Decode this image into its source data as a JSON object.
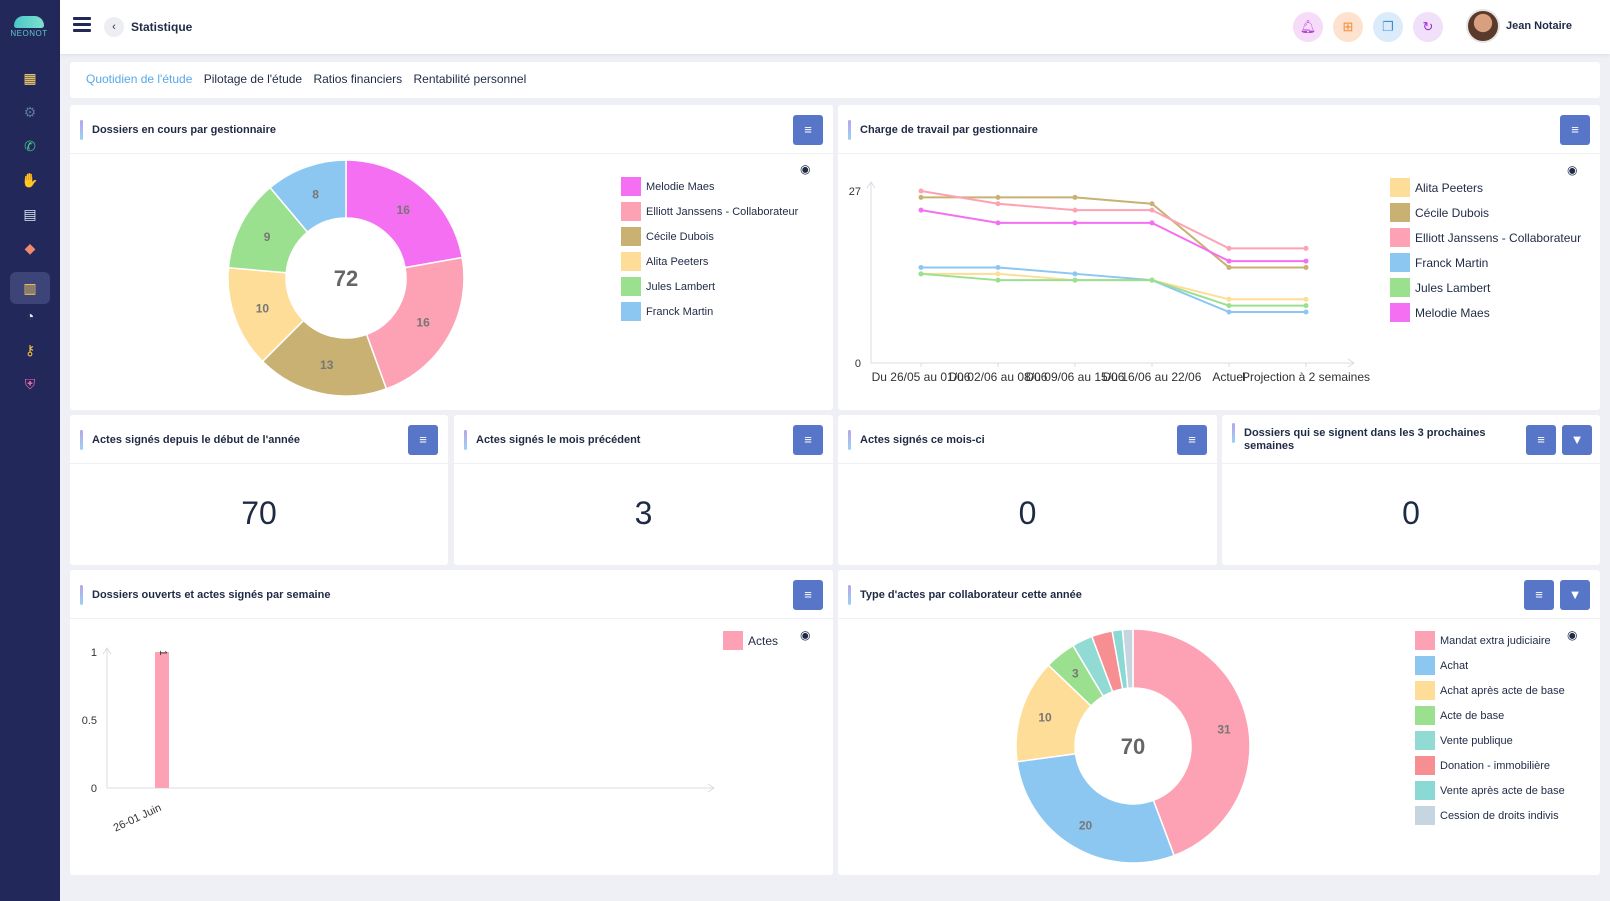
{
  "app": {
    "logo": "NEONOT",
    "page_title": "Statistique",
    "user_name": "Jean Notaire"
  },
  "topbar_icons": [
    {
      "name": "bell-icon",
      "color": "#b33fd6",
      "bg": "#f6dcf8"
    },
    {
      "name": "plus-square-icon",
      "color": "#f08a36",
      "bg": "#fde3cf"
    },
    {
      "name": "windows-icon",
      "color": "#3a8fdb",
      "bg": "#dcebf9"
    },
    {
      "name": "refresh-icon",
      "color": "#9b2fd6",
      "bg": "#f0e0f9"
    }
  ],
  "sidebar_icons": [
    "calendar-icon",
    "gear-icon",
    "phone-icon",
    "handshake-icon",
    "document-icon",
    "box-icon",
    "chart-icon",
    "clock-icon",
    "key-icon",
    "shield-icon"
  ],
  "tabs": [
    "Quotidien de l'étude",
    "Pilotage de l'étude",
    "Ratios financiers",
    "Rentabilité personnel"
  ],
  "cards": {
    "dossiers_en_cours": {
      "title": "Dossiers en cours par gestionnaire"
    },
    "charge_travail": {
      "title": "Charge de travail par gestionnaire"
    },
    "actes_annee": {
      "title": "Actes signés depuis le début de l'année",
      "value": "70"
    },
    "actes_mois_prec": {
      "title": "Actes signés le mois précédent",
      "value": "3"
    },
    "actes_mois": {
      "title": "Actes signés ce mois-ci",
      "value": "0"
    },
    "dossiers_3_semaines": {
      "title": "Dossiers qui se signent dans les 3 prochaines semaines",
      "value": "0"
    },
    "dossiers_semaine": {
      "title": "Dossiers ouverts et actes signés par semaine"
    },
    "type_actes": {
      "title": "Type d'actes par collaborateur cette année"
    }
  },
  "chart_data": [
    {
      "type": "pie",
      "name": "dossiers-en-cours",
      "total": 72,
      "labels": [
        "Melodie Maes",
        "Elliott Janssens - Collaborateur",
        "Cécile Dubois",
        "Alita Peeters",
        "Jules Lambert",
        "Franck Martin"
      ],
      "values": [
        16,
        16,
        13,
        10,
        9,
        8
      ],
      "colors": [
        "#f56ff2",
        "#fca2b4",
        "#c9b173",
        "#fddd97",
        "#9be08e",
        "#8cc7f2"
      ]
    },
    {
      "type": "line",
      "name": "charge-travail",
      "categories": [
        "Du 26/05 au 01/06",
        "Du 02/06 au 08/06",
        "Du 09/06 au 15/06",
        "Du 16/06 au 22/06",
        "Actuel",
        "Projection à 2 semaines"
      ],
      "y_ticks": [
        "0",
        "27"
      ],
      "ylim": [
        0,
        27
      ],
      "legend": [
        "Alita Peeters",
        "Cécile Dubois",
        "Elliott Janssens - Collaborateur",
        "Franck Martin",
        "Jules Lambert",
        "Melodie Maes"
      ],
      "series": [
        {
          "name": "Alita Peeters",
          "color": "#fddd97",
          "values": [
            14,
            14,
            13,
            13,
            10,
            10
          ]
        },
        {
          "name": "Cécile Dubois",
          "color": "#c9b173",
          "values": [
            26,
            26,
            26,
            25,
            15,
            15
          ]
        },
        {
          "name": "Elliott Janssens - Collaborateur",
          "color": "#fca2b4",
          "values": [
            27,
            25,
            24,
            24,
            18,
            18
          ]
        },
        {
          "name": "Franck Martin",
          "color": "#8cc7f2",
          "values": [
            15,
            15,
            14,
            13,
            8,
            8
          ]
        },
        {
          "name": "Jules Lambert",
          "color": "#9be08e",
          "values": [
            14,
            13,
            13,
            13,
            9,
            9
          ]
        },
        {
          "name": "Melodie Maes",
          "color": "#f56ff2",
          "values": [
            24,
            22,
            22,
            22,
            16,
            16
          ]
        }
      ]
    },
    {
      "type": "bar",
      "name": "dossiers-ouverts-semaine",
      "categories": [
        "26-01 Juin"
      ],
      "series": [
        {
          "name": "Actes",
          "color": "#fca2b4",
          "values": [
            1
          ]
        }
      ],
      "y_ticks": [
        "0",
        "0.5",
        "1"
      ],
      "ylim": [
        0,
        1
      ]
    },
    {
      "type": "pie",
      "name": "type-actes",
      "total": 70,
      "labels": [
        "Mandat extra judiciaire",
        "Achat",
        "Achat après acte de base",
        "Acte de base",
        "Vente publique",
        "Donation - immobilière",
        "Vente après acte de base",
        "Cession de droits indivis"
      ],
      "values": [
        31,
        20,
        10,
        3,
        2,
        2,
        1,
        1
      ],
      "colors": [
        "#fca2b4",
        "#8cc7f2",
        "#fddd97",
        "#9be08e",
        "#92dad4",
        "#f78e91",
        "#8bd9d4",
        "#c6d6e0"
      ]
    }
  ]
}
